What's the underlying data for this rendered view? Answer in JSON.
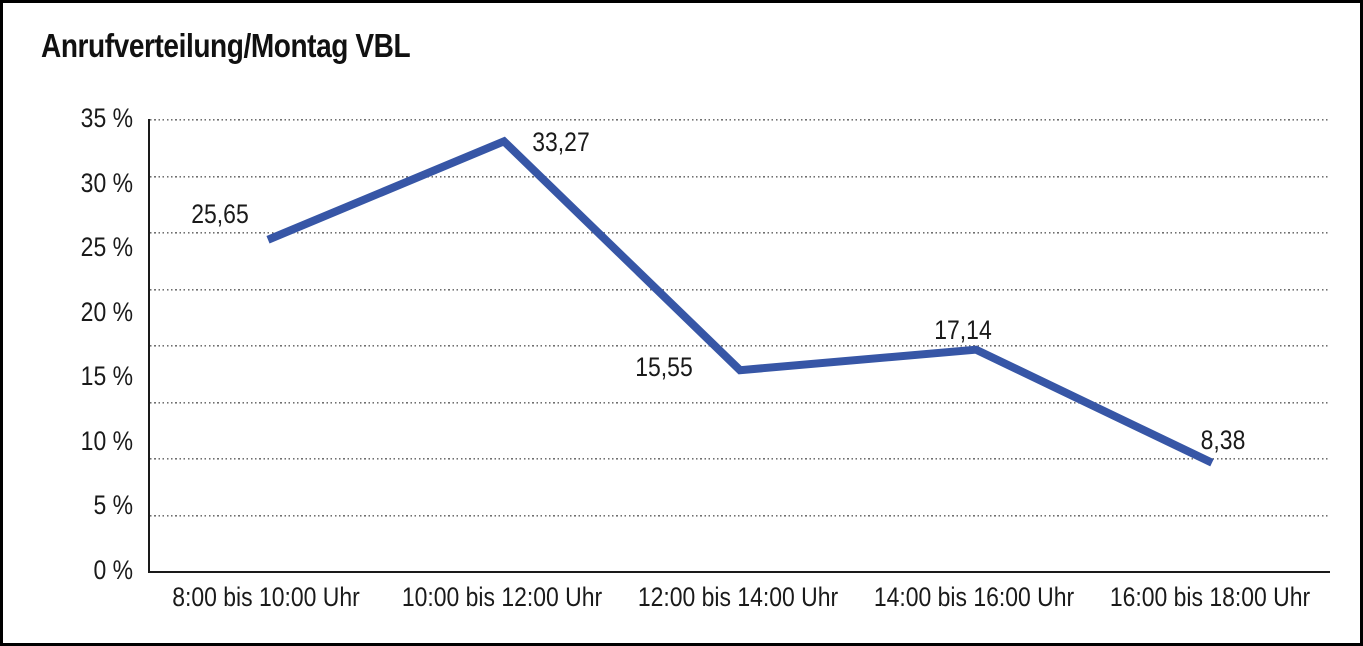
{
  "frame": {
    "background": "#ffffff",
    "border_color": "#000000"
  },
  "chart_data": {
    "type": "line",
    "title": "Anrufverteilung/Montag VBL",
    "categories": [
      "8:00 bis 10:00 Uhr",
      "10:00 bis 12:00 Uhr",
      "12:00 bis 14:00 Uhr",
      "14:00 bis 16:00 Uhr",
      "16:00 bis 18:00 Uhr"
    ],
    "values": [
      25.65,
      33.27,
      15.55,
      17.14,
      8.38
    ],
    "point_labels": [
      "25,65",
      "33,27",
      "15,55",
      "17,14",
      "8,38"
    ],
    "y_tick_labels": [
      "35 %",
      "30 %",
      "25 %",
      "20 %",
      "15 %",
      "10 %",
      "5 %",
      "0 %"
    ],
    "ylim": [
      0,
      35
    ],
    "y_tick_step": 5,
    "xlabel": "",
    "ylabel": "",
    "grid": "horizontal-dotted",
    "legend": "none",
    "line_color": "#3756A6",
    "axis_color": "#1a1a1a",
    "text_color": "#1a1a1a"
  }
}
